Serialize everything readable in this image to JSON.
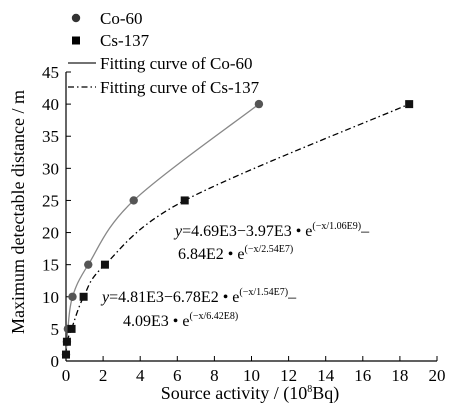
{
  "chart_data": {
    "type": "scatter",
    "xlabel": "Source activity / (10",
    "xlabel_sup": "8",
    "xlabel_end": "Bq)",
    "ylabel": "Maximum detectable distance / m",
    "xlim": [
      0,
      20
    ],
    "ylim": [
      0,
      45
    ],
    "x_ticks": [
      0,
      2,
      4,
      6,
      8,
      10,
      12,
      14,
      16,
      18,
      20
    ],
    "y_ticks": [
      0,
      5,
      10,
      15,
      20,
      25,
      30,
      35,
      40,
      45
    ],
    "grid": false,
    "legend_position": "top-left",
    "legend": [
      {
        "label": "Co-60",
        "marker": "circle"
      },
      {
        "label": "Cs-137",
        "marker": "square"
      },
      {
        "label": "Fitting curve of Co-60",
        "line": "solid"
      },
      {
        "label": "Fitting curve of Cs-137",
        "line": "dash-dot"
      }
    ],
    "series": [
      {
        "name": "Co-60",
        "marker": "circle",
        "color": "#555555",
        "x": [
          0.0,
          0.05,
          0.1,
          0.35,
          1.2,
          3.65,
          10.4
        ],
        "y": [
          1,
          3,
          5,
          10,
          15,
          25,
          40
        ]
      },
      {
        "name": "Cs-137",
        "marker": "square",
        "color": "#111111",
        "x": [
          0.0,
          0.05,
          0.3,
          0.95,
          2.1,
          6.4,
          18.5
        ],
        "y": [
          1,
          3,
          5,
          10,
          15,
          25,
          40
        ]
      }
    ],
    "fits": [
      {
        "name": "Fitting curve of Co-60",
        "style": "solid",
        "color": "#888888",
        "x_range": [
          0,
          10.4
        ],
        "equation": "y=4.81E3-6.78E2 • e^(-x/1.54E7)-4.09E3 • e^(-x/6.42E8)"
      },
      {
        "name": "Fitting curve of Cs-137",
        "style": "dashdot",
        "color": "#000000",
        "x_range": [
          0,
          18.5
        ],
        "equation": "y=4.69E3-3.97E3 • e^(-x/1.06E9)-6.84E2 • e^(-x/2.54E7)"
      }
    ],
    "annotations": {
      "cs137_line1_a": "y",
      "cs137_line1_b": "=4.69E3−3.97E3 • e",
      "cs137_line1_sup": "(−x/1.06E9)",
      "cs137_line1_end": "–",
      "cs137_line2_a": "6.84E2 • e",
      "cs137_line2_sup": "(−x/2.54E7)",
      "co60_line1_a": "y",
      "co60_line1_b": "=4.81E3−6.78E2 • e",
      "co60_line1_sup": "(−x/1.54E7)",
      "co60_line1_end": "–",
      "co60_line2_a": "4.09E3 • e",
      "co60_line2_sup": "(−x/6.42E8)"
    }
  }
}
